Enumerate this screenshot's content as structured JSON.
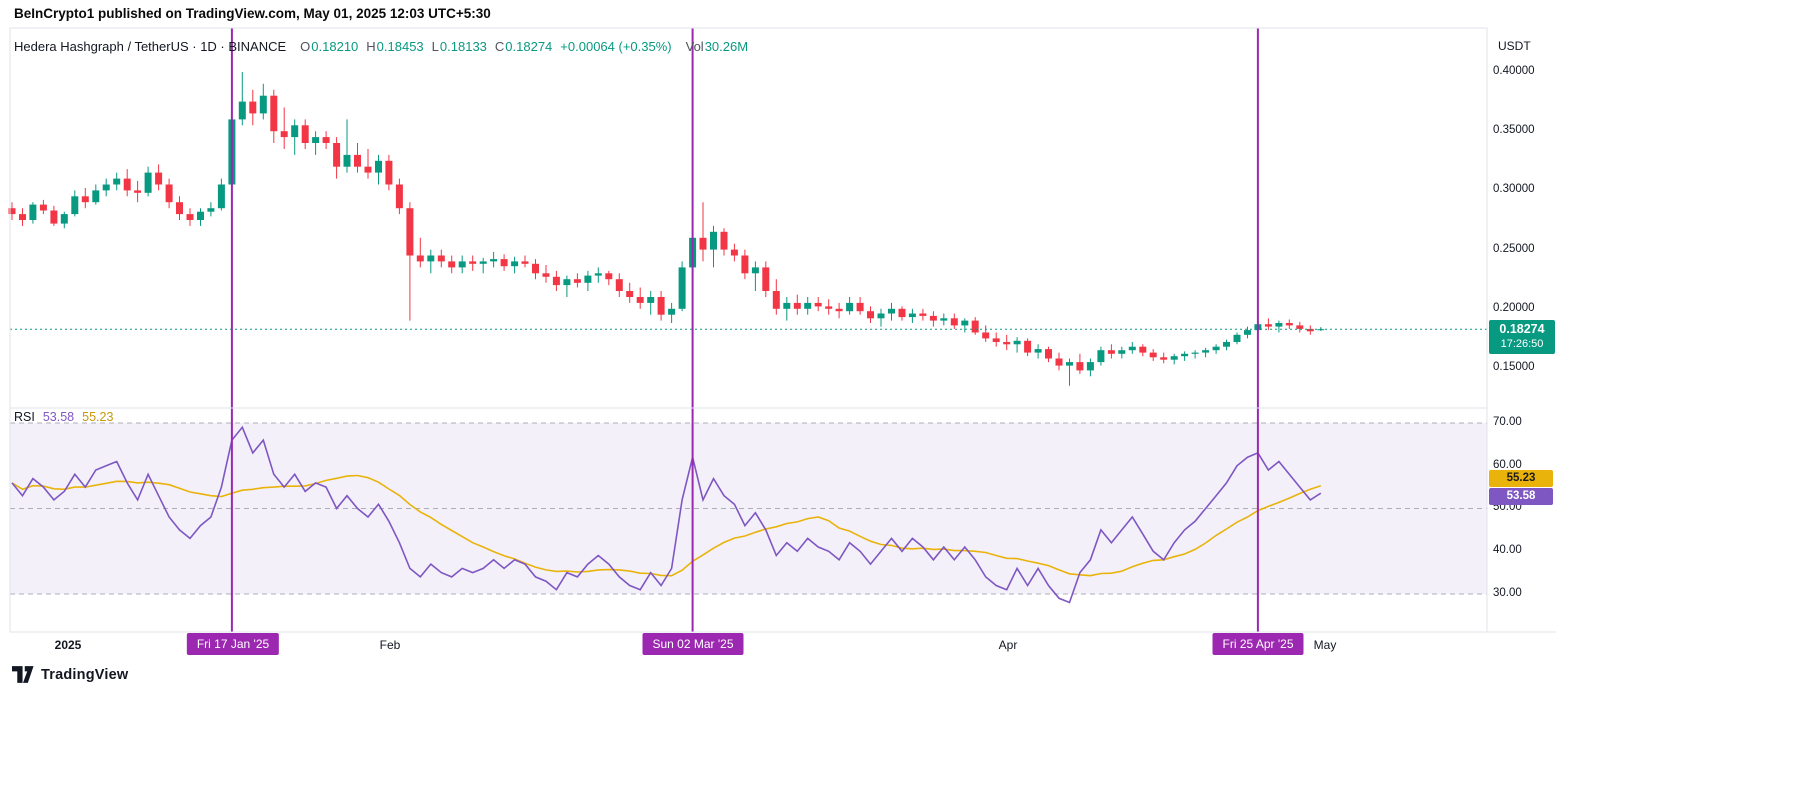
{
  "header": {
    "published_line": "BeInCrypto1 published on TradingView.com, May 01, 2025 12:03 UTC+5:30"
  },
  "legend": {
    "title": "Hedera Hashgraph / TetherUS · 1D · BINANCE",
    "ohlc": {
      "o_label": "O",
      "o": "0.18210",
      "h_label": "H",
      "h": "0.18453",
      "l_label": "L",
      "l": "0.18133",
      "c_label": "C",
      "c": "0.18274",
      "change": "+0.00064 (+0.35%)"
    },
    "vol_label": "Vol",
    "vol": "30.26M"
  },
  "price_axis": {
    "currency": "USDT",
    "ticks": [
      "0.40000",
      "0.35000",
      "0.30000",
      "0.25000",
      "0.20000",
      "0.15000"
    ],
    "last_price": "0.18274",
    "countdown": "17:26:50"
  },
  "rsi_panel": {
    "label": "RSI",
    "value": "53.58",
    "ma_value": "55.23",
    "ticks": [
      "70.00",
      "60.00",
      "50.00",
      "40.00",
      "30.00"
    ],
    "value_badge": "53.58",
    "ma_badge": "55.23"
  },
  "time_axis": {
    "labels": [
      "2025",
      "Feb",
      "Apr",
      "May"
    ],
    "markers": [
      "Fri 17 Jan '25",
      "Sun 02 Mar '25",
      "Fri 25 Apr '25"
    ]
  },
  "footer": {
    "brand": "TradingView"
  },
  "colors": {
    "up": "#089981",
    "down": "#f23645",
    "rsi": "#7e57c2",
    "rsi_ma": "#eab30b",
    "marker": "#9c27b0",
    "grid": "#e0e3eb",
    "last_price_bg": "#089981",
    "band_fill": "#7e57c2"
  },
  "chart_data": {
    "type": "candlestick",
    "title": "Hedera Hashgraph / TetherUS, 1D, BINANCE",
    "x_start_date": "2024-12-27",
    "x_interval": "1 day",
    "ylabel": "Price (USDT)",
    "price_axis_ticks": [
      0.4,
      0.35,
      0.3,
      0.25,
      0.2,
      0.15
    ],
    "ylim": [
      0.115,
      0.425
    ],
    "last_price": 0.18274,
    "ohlc_display": {
      "open": 0.1821,
      "high": 0.18453,
      "low": 0.18133,
      "close": 0.18274,
      "change": 0.00064,
      "change_pct": 0.35,
      "volume": "30.26M"
    },
    "markers": [
      {
        "index": 21,
        "label": "Fri 17 Jan '25"
      },
      {
        "index": 65,
        "label": "Sun 02 Mar '25"
      },
      {
        "index": 119,
        "label": "Fri 25 Apr '25"
      }
    ],
    "candles": [
      [
        0.285,
        0.29,
        0.275,
        0.28
      ],
      [
        0.28,
        0.285,
        0.27,
        0.275
      ],
      [
        0.275,
        0.29,
        0.272,
        0.288
      ],
      [
        0.288,
        0.292,
        0.28,
        0.283
      ],
      [
        0.283,
        0.287,
        0.27,
        0.272
      ],
      [
        0.272,
        0.282,
        0.268,
        0.28
      ],
      [
        0.28,
        0.3,
        0.278,
        0.295
      ],
      [
        0.295,
        0.302,
        0.285,
        0.29
      ],
      [
        0.29,
        0.305,
        0.288,
        0.3
      ],
      [
        0.3,
        0.31,
        0.295,
        0.305
      ],
      [
        0.305,
        0.315,
        0.3,
        0.31
      ],
      [
        0.31,
        0.318,
        0.295,
        0.3
      ],
      [
        0.3,
        0.308,
        0.29,
        0.298
      ],
      [
        0.298,
        0.32,
        0.295,
        0.315
      ],
      [
        0.315,
        0.322,
        0.3,
        0.305
      ],
      [
        0.305,
        0.31,
        0.285,
        0.29
      ],
      [
        0.29,
        0.295,
        0.275,
        0.28
      ],
      [
        0.28,
        0.285,
        0.27,
        0.275
      ],
      [
        0.275,
        0.285,
        0.27,
        0.282
      ],
      [
        0.282,
        0.29,
        0.278,
        0.285
      ],
      [
        0.285,
        0.31,
        0.283,
        0.305
      ],
      [
        0.305,
        0.365,
        0.3,
        0.36
      ],
      [
        0.36,
        0.4,
        0.355,
        0.375
      ],
      [
        0.375,
        0.385,
        0.355,
        0.365
      ],
      [
        0.365,
        0.39,
        0.36,
        0.38
      ],
      [
        0.38,
        0.385,
        0.34,
        0.35
      ],
      [
        0.35,
        0.37,
        0.335,
        0.345
      ],
      [
        0.345,
        0.36,
        0.33,
        0.355
      ],
      [
        0.355,
        0.36,
        0.335,
        0.34
      ],
      [
        0.34,
        0.35,
        0.33,
        0.345
      ],
      [
        0.345,
        0.35,
        0.335,
        0.34
      ],
      [
        0.34,
        0.345,
        0.31,
        0.32
      ],
      [
        0.32,
        0.36,
        0.315,
        0.33
      ],
      [
        0.33,
        0.34,
        0.315,
        0.32
      ],
      [
        0.32,
        0.335,
        0.31,
        0.315
      ],
      [
        0.315,
        0.33,
        0.305,
        0.325
      ],
      [
        0.325,
        0.33,
        0.3,
        0.305
      ],
      [
        0.305,
        0.31,
        0.28,
        0.285
      ],
      [
        0.285,
        0.29,
        0.19,
        0.245
      ],
      [
        0.245,
        0.26,
        0.235,
        0.24
      ],
      [
        0.24,
        0.25,
        0.23,
        0.245
      ],
      [
        0.245,
        0.25,
        0.235,
        0.24
      ],
      [
        0.24,
        0.245,
        0.23,
        0.235
      ],
      [
        0.235,
        0.245,
        0.23,
        0.24
      ],
      [
        0.24,
        0.245,
        0.232,
        0.238
      ],
      [
        0.238,
        0.243,
        0.23,
        0.24
      ],
      [
        0.24,
        0.248,
        0.235,
        0.242
      ],
      [
        0.242,
        0.246,
        0.232,
        0.236
      ],
      [
        0.236,
        0.244,
        0.23,
        0.24
      ],
      [
        0.24,
        0.245,
        0.235,
        0.238
      ],
      [
        0.238,
        0.242,
        0.225,
        0.23
      ],
      [
        0.23,
        0.237,
        0.222,
        0.227
      ],
      [
        0.227,
        0.232,
        0.215,
        0.22
      ],
      [
        0.22,
        0.228,
        0.21,
        0.225
      ],
      [
        0.225,
        0.23,
        0.218,
        0.222
      ],
      [
        0.222,
        0.232,
        0.215,
        0.228
      ],
      [
        0.228,
        0.235,
        0.222,
        0.23
      ],
      [
        0.23,
        0.232,
        0.22,
        0.225
      ],
      [
        0.225,
        0.23,
        0.21,
        0.215
      ],
      [
        0.215,
        0.222,
        0.205,
        0.21
      ],
      [
        0.21,
        0.218,
        0.2,
        0.205
      ],
      [
        0.205,
        0.215,
        0.195,
        0.21
      ],
      [
        0.21,
        0.215,
        0.19,
        0.195
      ],
      [
        0.195,
        0.205,
        0.188,
        0.2
      ],
      [
        0.2,
        0.24,
        0.198,
        0.235
      ],
      [
        0.235,
        0.265,
        0.23,
        0.26
      ],
      [
        0.26,
        0.29,
        0.24,
        0.25
      ],
      [
        0.25,
        0.27,
        0.235,
        0.265
      ],
      [
        0.265,
        0.268,
        0.245,
        0.25
      ],
      [
        0.25,
        0.255,
        0.24,
        0.245
      ],
      [
        0.245,
        0.25,
        0.225,
        0.23
      ],
      [
        0.23,
        0.24,
        0.215,
        0.235
      ],
      [
        0.235,
        0.24,
        0.21,
        0.215
      ],
      [
        0.215,
        0.225,
        0.195,
        0.2
      ],
      [
        0.2,
        0.21,
        0.19,
        0.205
      ],
      [
        0.205,
        0.212,
        0.195,
        0.2
      ],
      [
        0.2,
        0.21,
        0.195,
        0.205
      ],
      [
        0.205,
        0.21,
        0.198,
        0.202
      ],
      [
        0.202,
        0.208,
        0.195,
        0.2
      ],
      [
        0.2,
        0.205,
        0.192,
        0.198
      ],
      [
        0.198,
        0.21,
        0.195,
        0.205
      ],
      [
        0.205,
        0.21,
        0.195,
        0.198
      ],
      [
        0.198,
        0.202,
        0.188,
        0.192
      ],
      [
        0.192,
        0.2,
        0.185,
        0.196
      ],
      [
        0.196,
        0.205,
        0.19,
        0.2
      ],
      [
        0.2,
        0.202,
        0.19,
        0.193
      ],
      [
        0.193,
        0.2,
        0.188,
        0.196
      ],
      [
        0.196,
        0.2,
        0.19,
        0.194
      ],
      [
        0.194,
        0.198,
        0.185,
        0.19
      ],
      [
        0.19,
        0.196,
        0.186,
        0.192
      ],
      [
        0.192,
        0.196,
        0.183,
        0.186
      ],
      [
        0.186,
        0.192,
        0.18,
        0.19
      ],
      [
        0.19,
        0.193,
        0.178,
        0.18
      ],
      [
        0.18,
        0.186,
        0.172,
        0.175
      ],
      [
        0.175,
        0.18,
        0.168,
        0.172
      ],
      [
        0.172,
        0.178,
        0.165,
        0.17
      ],
      [
        0.17,
        0.176,
        0.163,
        0.173
      ],
      [
        0.173,
        0.175,
        0.16,
        0.163
      ],
      [
        0.163,
        0.17,
        0.158,
        0.166
      ],
      [
        0.166,
        0.168,
        0.155,
        0.158
      ],
      [
        0.158,
        0.163,
        0.148,
        0.152
      ],
      [
        0.152,
        0.158,
        0.135,
        0.155
      ],
      [
        0.155,
        0.162,
        0.145,
        0.148
      ],
      [
        0.148,
        0.158,
        0.143,
        0.155
      ],
      [
        0.155,
        0.168,
        0.152,
        0.165
      ],
      [
        0.165,
        0.17,
        0.158,
        0.162
      ],
      [
        0.162,
        0.168,
        0.158,
        0.165
      ],
      [
        0.165,
        0.172,
        0.162,
        0.168
      ],
      [
        0.168,
        0.17,
        0.16,
        0.163
      ],
      [
        0.163,
        0.166,
        0.156,
        0.159
      ],
      [
        0.159,
        0.163,
        0.154,
        0.157
      ],
      [
        0.157,
        0.162,
        0.153,
        0.16
      ],
      [
        0.16,
        0.164,
        0.156,
        0.162
      ],
      [
        0.162,
        0.165,
        0.158,
        0.163
      ],
      [
        0.163,
        0.167,
        0.159,
        0.165
      ],
      [
        0.165,
        0.17,
        0.162,
        0.168
      ],
      [
        0.168,
        0.174,
        0.165,
        0.172
      ],
      [
        0.172,
        0.18,
        0.17,
        0.178
      ],
      [
        0.178,
        0.185,
        0.175,
        0.182
      ],
      [
        0.182,
        0.19,
        0.178,
        0.187
      ],
      [
        0.187,
        0.192,
        0.182,
        0.185
      ],
      [
        0.185,
        0.19,
        0.18,
        0.188
      ],
      [
        0.188,
        0.191,
        0.183,
        0.186
      ],
      [
        0.186,
        0.189,
        0.18,
        0.183
      ],
      [
        0.183,
        0.186,
        0.178,
        0.181
      ],
      [
        0.1821,
        0.18453,
        0.18133,
        0.18274
      ]
    ],
    "rsi": {
      "type": "line",
      "name": "RSI",
      "last": 53.58,
      "ma_last": 55.23,
      "levels": [
        70,
        50,
        30
      ],
      "band": [
        30,
        70
      ],
      "axis_ticks": [
        70,
        60,
        50,
        40,
        30
      ],
      "ylim": [
        24,
        76
      ],
      "ma": {
        "kind": "SMA",
        "length": 14
      },
      "values": [
        56,
        53,
        57,
        55,
        52,
        54,
        58,
        55,
        59,
        60,
        61,
        56,
        52,
        58,
        53,
        48,
        45,
        43,
        46,
        48,
        55,
        66,
        69,
        63,
        66,
        58,
        55,
        58,
        54,
        56,
        55,
        50,
        53,
        50,
        48,
        51,
        47,
        42,
        36,
        34,
        37,
        35,
        34,
        36,
        35,
        36,
        38,
        36,
        38,
        37,
        34,
        33,
        31,
        35,
        34,
        37,
        39,
        37,
        34,
        32,
        31,
        35,
        32,
        36,
        52,
        62,
        52,
        57,
        53,
        51,
        46,
        49,
        45,
        39,
        42,
        40,
        43,
        41,
        40,
        38,
        42,
        40,
        37,
        40,
        43,
        40,
        43,
        41,
        38,
        41,
        38,
        41,
        38,
        34,
        32,
        31,
        36,
        32,
        36,
        32,
        29,
        28,
        35,
        38,
        45,
        42,
        45,
        48,
        44,
        40,
        38,
        42,
        45,
        47,
        50,
        53,
        56,
        60,
        62,
        63,
        59,
        61,
        58,
        55,
        52,
        53.58
      ]
    }
  }
}
